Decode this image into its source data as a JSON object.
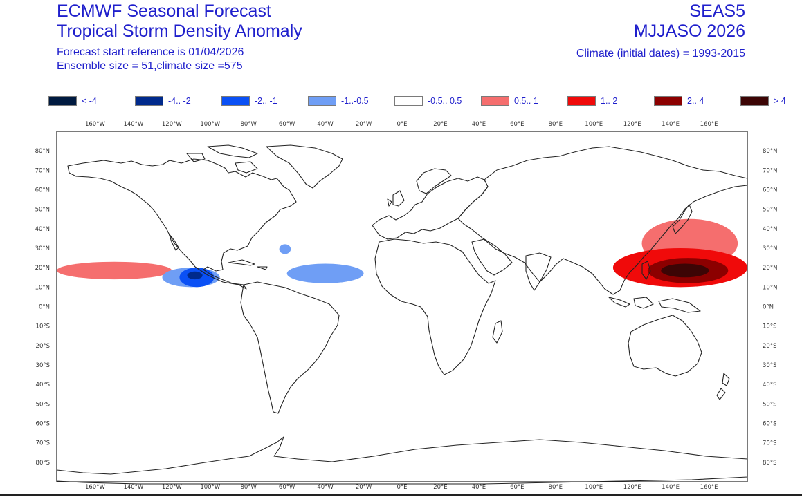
{
  "header": {
    "title": "ECMWF Seasonal Forecast",
    "subtitle": "Tropical Storm Density Anomaly",
    "forecast_start": "Forecast start reference is 01/04/2026",
    "ensemble": "Ensemble size = 51,climate size =575",
    "system": "SEAS5",
    "period": "MJJASO 2026",
    "climate": "Climate (initial dates) = 1993-2015"
  },
  "legend": [
    {
      "label": "< -4",
      "color": "#001a40"
    },
    {
      "label": "-4.. -2",
      "color": "#002a8c"
    },
    {
      "label": "-2.. -1",
      "color": "#0a50f5"
    },
    {
      "label": "-1..-0.5",
      "color": "#6f9ef5"
    },
    {
      "label": "-0.5.. 0.5",
      "color": "#ffffff"
    },
    {
      "label": "0.5.. 1",
      "color": "#f56e6e"
    },
    {
      "label": "1..  2",
      "color": "#f00a0a"
    },
    {
      "label": "2..  4",
      "color": "#8c0000"
    },
    {
      "label": ">  4",
      "color": "#3c0505"
    }
  ],
  "map": {
    "lon_labels": [
      "160°W",
      "140°W",
      "120°W",
      "100°W",
      "80°W",
      "60°W",
      "40°W",
      "20°W",
      "0°E",
      "20°E",
      "40°E",
      "60°E",
      "80°E",
      "100°E",
      "120°E",
      "140°E",
      "160°E"
    ],
    "lat_labels": [
      "80°N",
      "70°N",
      "60°N",
      "50°N",
      "40°N",
      "30°N",
      "20°N",
      "10°N",
      "0°N",
      "10°S",
      "20°S",
      "30°S",
      "40°S",
      "50°S",
      "60°S",
      "70°S",
      "80°S"
    ],
    "anomaly_regions": [
      {
        "name": "west-pacific-core",
        "category": ">  4",
        "lon_range": [
          135,
          160
        ],
        "lat_range": [
          15,
          22
        ]
      },
      {
        "name": "west-pacific-strong",
        "category": "2..  4",
        "lon_range": [
          128,
          170
        ],
        "lat_range": [
          12,
          25
        ]
      },
      {
        "name": "west-pacific-moderate",
        "category": "1..  2",
        "lon_range": [
          110,
          180
        ],
        "lat_range": [
          10,
          30
        ]
      },
      {
        "name": "west-pacific-weak",
        "category": "0.5.. 1",
        "lon_range": [
          125,
          175
        ],
        "lat_range": [
          20,
          45
        ]
      },
      {
        "name": "east-pacific-core",
        "category": "-4.. -2",
        "lon_range": [
          -112,
          -104
        ],
        "lat_range": [
          14,
          18
        ]
      },
      {
        "name": "east-pacific-negative",
        "category": "-2.. -1",
        "lon_range": [
          -116,
          -98
        ],
        "lat_range": [
          10,
          20
        ]
      },
      {
        "name": "east-pacific-weak-negative",
        "category": "-1..-0.5",
        "lon_range": [
          -125,
          -95
        ],
        "lat_range": [
          10,
          20
        ]
      },
      {
        "name": "atlantic-weak-negative",
        "category": "-1..-0.5",
        "lon_range": [
          -60,
          -20
        ],
        "lat_range": [
          12,
          22
        ]
      },
      {
        "name": "atlantic-north-weak-negative",
        "category": "-1..-0.5",
        "lon_range": [
          -64,
          -58
        ],
        "lat_range": [
          27,
          32
        ]
      },
      {
        "name": "central-pacific-weak-positive",
        "category": "0.5.. 1",
        "lon_range": [
          -180,
          -120
        ],
        "lat_range": [
          14,
          23
        ]
      }
    ]
  }
}
